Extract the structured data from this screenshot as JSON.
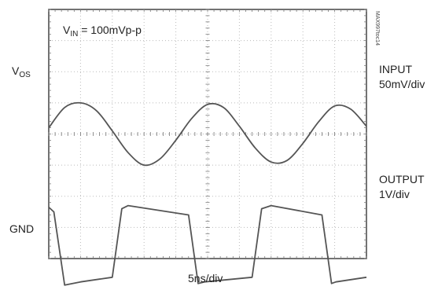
{
  "chart_data": {
    "type": "line",
    "title": "",
    "annotation": {
      "prefix": "V",
      "sub": "IN",
      "rest": " = 100mVp-p"
    },
    "figure_id": "MAX997toc14",
    "grid": {
      "on": true,
      "divisions_x": 10,
      "divisions_y": 8
    },
    "x_axis": {
      "label": "5ns/div",
      "unit": "ns",
      "per_div": 5,
      "range": [
        0,
        50
      ]
    },
    "y_axis": {
      "range_div": [
        -4,
        4
      ]
    },
    "levels": {
      "vos": {
        "prefix": "V",
        "sub": "OS"
      },
      "gnd": {
        "label": "GND"
      }
    },
    "series": [
      {
        "name": "INPUT",
        "scale": "50mV/div",
        "color": "#555555",
        "x_ns": [
          0,
          2.5,
          5,
          7.5,
          10,
          12.5,
          15,
          17.5,
          20,
          22.5,
          25,
          27.5,
          30,
          32.5,
          35,
          37.5,
          40,
          42.5,
          45,
          47.5,
          50
        ],
        "y_div": [
          0.2,
          0.85,
          1.0,
          0.75,
          0.1,
          -0.6,
          -1.0,
          -0.8,
          -0.2,
          0.5,
          0.95,
          0.85,
          0.25,
          -0.45,
          -0.9,
          -0.85,
          -0.3,
          0.4,
          0.9,
          0.8,
          0.25
        ]
      },
      {
        "name": "OUTPUT",
        "scale": "1V/div",
        "color": "#555555",
        "x_ns": [
          0,
          0.8,
          2.5,
          5,
          10,
          11.5,
          12.5,
          22,
          23.5,
          24.5,
          32,
          33.5,
          35,
          43,
          44.5,
          45.2,
          50
        ],
        "y_div": [
          -2.35,
          -2.5,
          -4.85,
          -4.75,
          -4.6,
          -2.4,
          -2.3,
          -2.6,
          -4.8,
          -4.75,
          -4.6,
          -2.4,
          -2.3,
          -2.6,
          -4.8,
          -4.75,
          -4.6
        ]
      }
    ]
  }
}
